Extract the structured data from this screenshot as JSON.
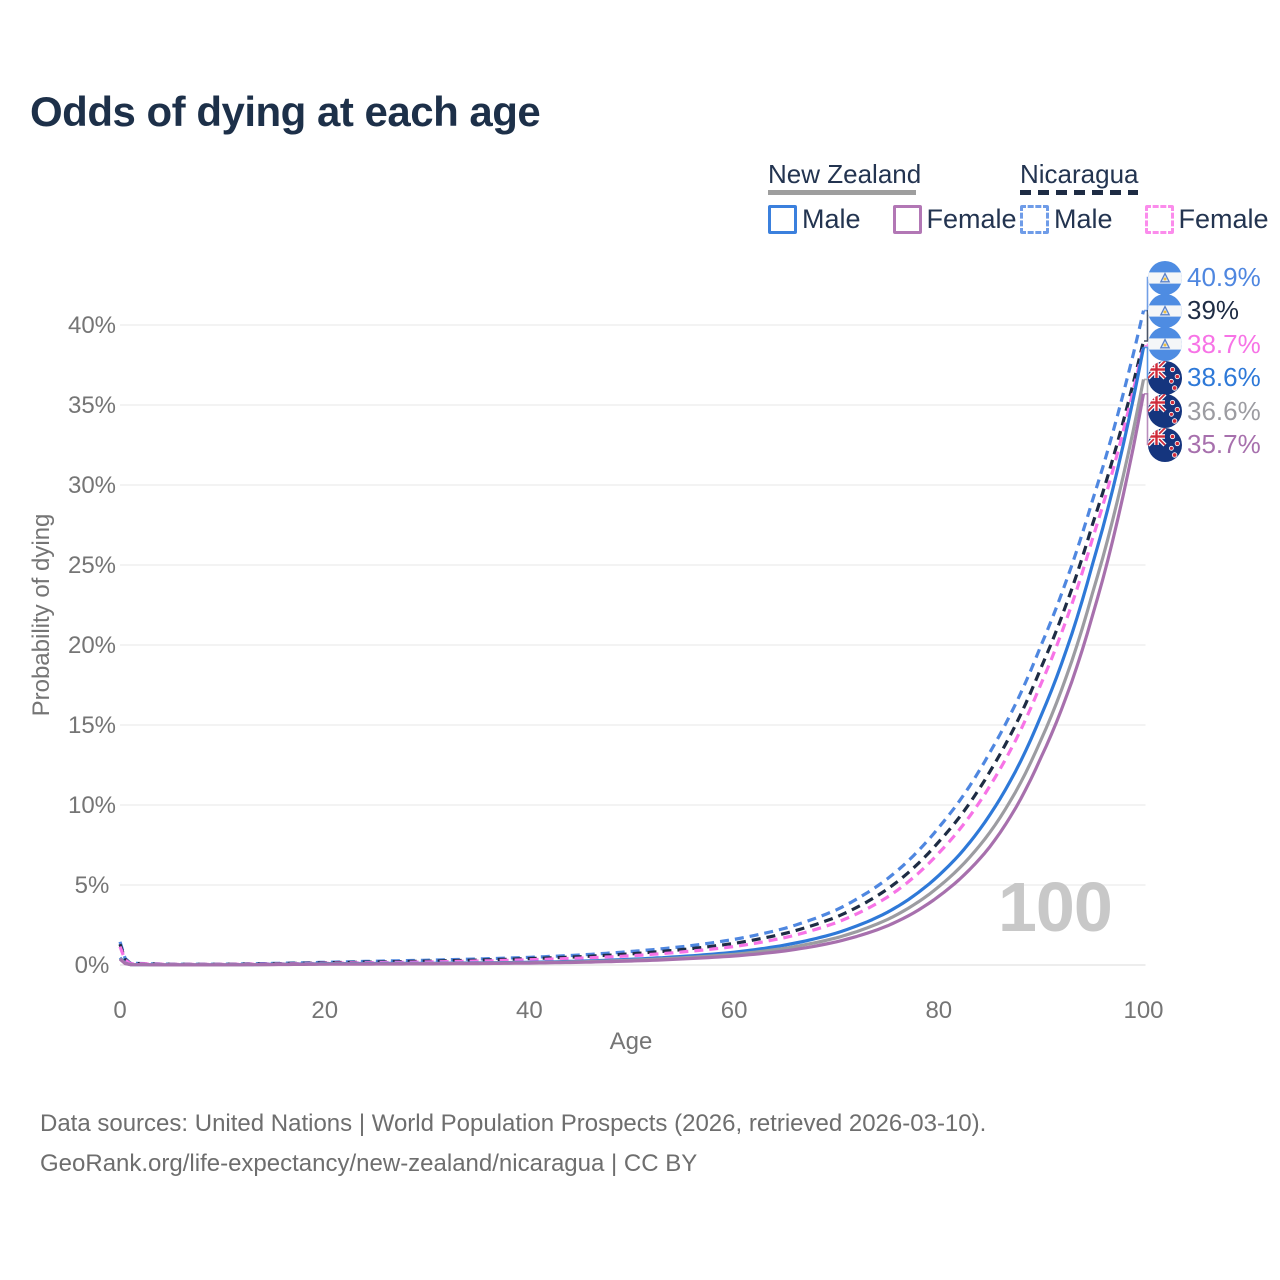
{
  "title": "Odds of dying at each age",
  "legend": {
    "groups": [
      {
        "country": "New Zealand",
        "line_style": "solid",
        "underline_color": "#9e9e9e",
        "items": [
          {
            "label": "Male",
            "color": "#3b80dd"
          },
          {
            "label": "Female",
            "color": "#b277b5"
          }
        ]
      },
      {
        "country": "Nicaragua",
        "line_style": "dashed",
        "underline_color": "#1e2c44",
        "items": [
          {
            "label": "Male",
            "color": "#6f9ce8"
          },
          {
            "label": "Female",
            "color": "#fb8cec"
          }
        ]
      }
    ]
  },
  "chart_data": {
    "type": "line",
    "title": "Odds of dying at each age",
    "xlabel": "Age",
    "ylabel": "Probability of dying",
    "xlim": [
      0,
      100
    ],
    "ylim": [
      0,
      43
    ],
    "grid": "horizontal",
    "legend_position": "top-right",
    "watermark": "100",
    "x_tick_values": [
      0,
      20,
      40,
      60,
      80,
      100
    ],
    "x_tick_labels": [
      "0",
      "20",
      "40",
      "60",
      "80",
      "100"
    ],
    "y_tick_values": [
      0,
      5,
      10,
      15,
      20,
      25,
      30,
      35,
      40
    ],
    "y_tick_labels": [
      "0%",
      "5%",
      "10%",
      "15%",
      "20%",
      "25%",
      "30%",
      "35%",
      "40%"
    ],
    "x": [
      0,
      1,
      5,
      10,
      15,
      20,
      25,
      30,
      35,
      40,
      45,
      50,
      55,
      60,
      65,
      70,
      75,
      80,
      85,
      90,
      95,
      100
    ],
    "series": [
      {
        "name": "Nicaragua Male",
        "country": "Nicaragua",
        "sex": "male",
        "color": "#4f87e0",
        "dashed": true,
        "end_value": 40.9,
        "values": [
          1.45,
          0.12,
          0.05,
          0.05,
          0.1,
          0.17,
          0.24,
          0.3,
          0.38,
          0.48,
          0.63,
          0.85,
          1.15,
          1.6,
          2.3,
          3.45,
          5.4,
          8.6,
          13.3,
          20.0,
          29.0,
          40.9
        ]
      },
      {
        "name": "Nicaragua Both sexes",
        "country": "Nicaragua",
        "sex": "both",
        "color": "#1e2c44",
        "dashed": true,
        "end_value": 39.0,
        "values": [
          1.3,
          0.1,
          0.045,
          0.045,
          0.085,
          0.14,
          0.19,
          0.24,
          0.31,
          0.4,
          0.52,
          0.7,
          0.97,
          1.35,
          1.98,
          3.0,
          4.75,
          7.7,
          12.1,
          18.6,
          27.5,
          39.0
        ]
      },
      {
        "name": "Nicaragua Female",
        "country": "Nicaragua",
        "sex": "female",
        "color": "#f773e6",
        "dashed": true,
        "end_value": 38.7,
        "values": [
          1.15,
          0.09,
          0.04,
          0.04,
          0.07,
          0.11,
          0.15,
          0.19,
          0.25,
          0.33,
          0.43,
          0.58,
          0.82,
          1.15,
          1.72,
          2.65,
          4.25,
          7.0,
          11.2,
          17.6,
          26.6,
          38.7
        ]
      },
      {
        "name": "New Zealand Male",
        "country": "New Zealand",
        "sex": "male",
        "color": "#2e79d8",
        "dashed": false,
        "end_value": 38.6,
        "values": [
          0.45,
          0.03,
          0.01,
          0.012,
          0.045,
          0.085,
          0.095,
          0.105,
          0.13,
          0.17,
          0.24,
          0.36,
          0.54,
          0.8,
          1.25,
          2.0,
          3.3,
          5.6,
          9.4,
          15.6,
          25.0,
          38.6
        ]
      },
      {
        "name": "New Zealand Both sexes",
        "country": "New Zealand",
        "sex": "both",
        "color": "#9c9ca1",
        "dashed": false,
        "end_value": 36.6,
        "values": [
          0.4,
          0.027,
          0.009,
          0.011,
          0.035,
          0.065,
          0.075,
          0.085,
          0.11,
          0.14,
          0.2,
          0.3,
          0.45,
          0.67,
          1.05,
          1.7,
          2.85,
          4.9,
          8.3,
          14.1,
          23.2,
          36.6
        ]
      },
      {
        "name": "New Zealand Female",
        "country": "New Zealand",
        "sex": "female",
        "color": "#a770ad",
        "dashed": false,
        "end_value": 35.7,
        "values": [
          0.36,
          0.024,
          0.008,
          0.01,
          0.028,
          0.05,
          0.06,
          0.07,
          0.09,
          0.12,
          0.17,
          0.25,
          0.38,
          0.56,
          0.88,
          1.45,
          2.45,
          4.3,
          7.4,
          13.0,
          21.8,
          35.7
        ]
      }
    ],
    "end_labels": [
      {
        "text": "40.9%",
        "flag": "nicaragua",
        "color": "#4f87e0"
      },
      {
        "text": "39%",
        "flag": "nicaragua",
        "color": "#1e2c44"
      },
      {
        "text": "38.7%",
        "flag": "nicaragua",
        "color": "#f773e6"
      },
      {
        "text": "38.6%",
        "flag": "new-zealand",
        "color": "#2e79d8"
      },
      {
        "text": "36.6%",
        "flag": "new-zealand",
        "color": "#9c9ca1"
      },
      {
        "text": "35.7%",
        "flag": "new-zealand",
        "color": "#a770ad"
      }
    ]
  },
  "footer": {
    "line1": "Data sources: United Nations | World Population Prospects (2026, retrieved 2026-03-10).",
    "line2": "GeoRank.org/life-expectancy/new-zealand/nicaragua | CC BY"
  }
}
